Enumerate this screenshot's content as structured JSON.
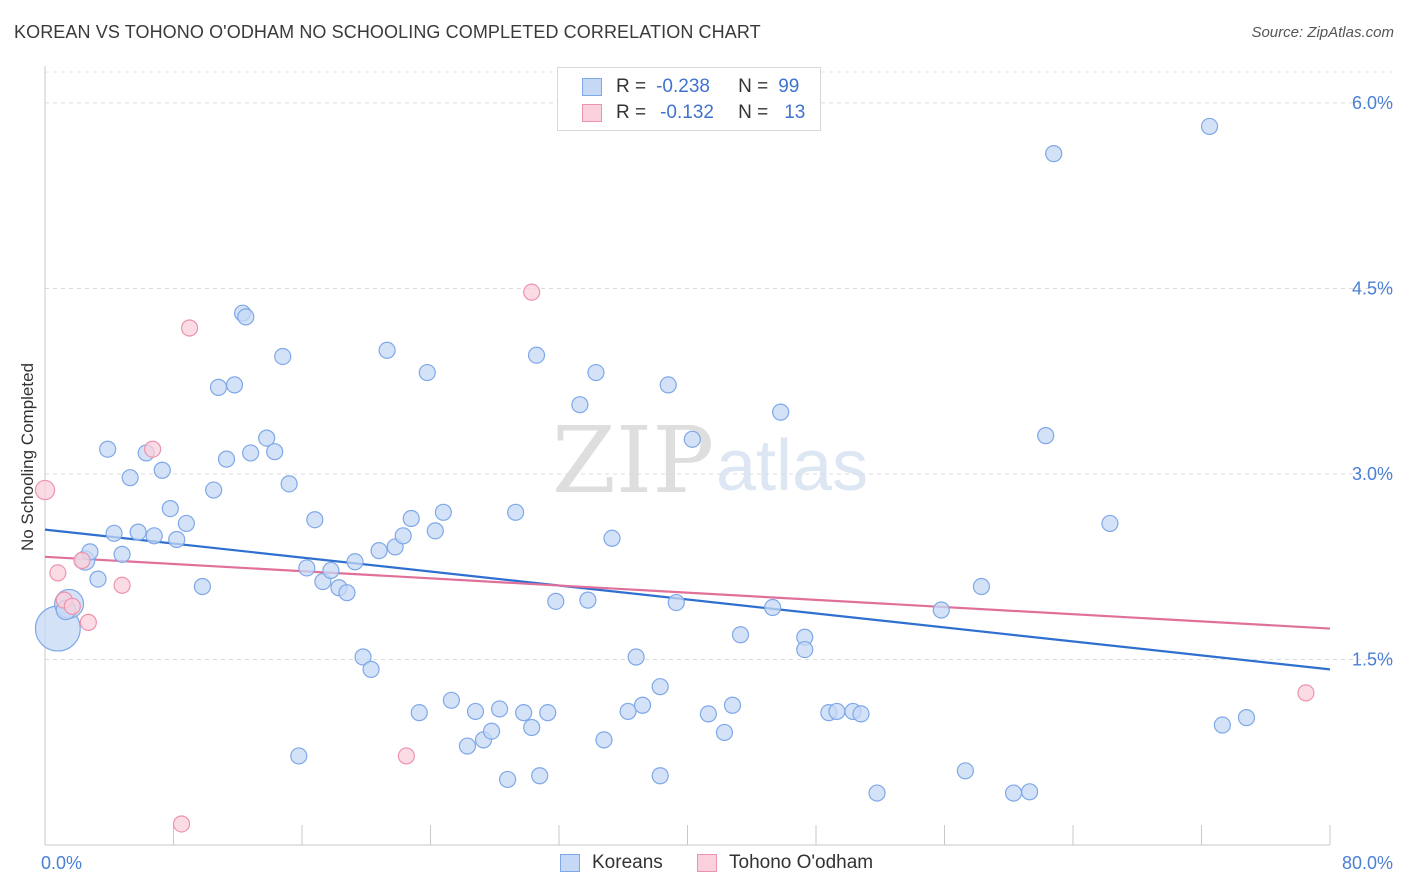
{
  "header": {
    "title": "KOREAN VS TOHONO O'ODHAM NO SCHOOLING COMPLETED CORRELATION CHART",
    "source": "Source: ZipAtlas.com"
  },
  "watermark": {
    "zip": "ZIP",
    "atlas": "atlas"
  },
  "legend": {
    "rows": [
      {
        "r_label": "R =",
        "r_value": "-0.238",
        "n_label": "N =",
        "n_value": "99",
        "color": "#7fa8e8",
        "fill": "#c5d8f6"
      },
      {
        "r_label": "R =",
        "r_value": "-0.132",
        "n_label": "N =",
        "n_value": "13",
        "color": "#ee93ad",
        "fill": "#f9d0dc"
      }
    ]
  },
  "bottom_legend": {
    "items": [
      "Koreans",
      "Tohono O'odham"
    ]
  },
  "chart_data": {
    "type": "scatter",
    "title": "KOREAN VS TOHONO O'ODHAM NO SCHOOLING COMPLETED CORRELATION CHART",
    "xlabel": "",
    "ylabel": "No Schooling Completed",
    "xlim": [
      0,
      80
    ],
    "ylim": [
      0,
      6.25
    ],
    "x_tick_labels": [
      "0.0%",
      "80.0%"
    ],
    "y_ticks": [
      1.5,
      3.0,
      4.5,
      6.0
    ],
    "y_tick_labels": [
      "1.5%",
      "3.0%",
      "4.5%",
      "6.0%"
    ],
    "grid": true,
    "series": [
      {
        "name": "Koreans",
        "color": "#7fa8e8",
        "fill": "#c5d8f6",
        "trend": {
          "x": [
            0,
            80
          ],
          "y": [
            2.55,
            1.42
          ]
        },
        "points": [
          [
            0.8,
            1.75,
            28
          ],
          [
            1.5,
            1.95,
            18
          ],
          [
            1.3,
            1.9,
            12
          ],
          [
            2.5,
            2.3,
            12
          ],
          [
            2.8,
            2.37,
            10
          ],
          [
            3.3,
            2.15,
            10
          ],
          [
            3.9,
            3.2,
            10
          ],
          [
            4.3,
            2.52,
            10
          ],
          [
            4.8,
            2.35,
            10
          ],
          [
            5.3,
            2.97,
            10
          ],
          [
            5.8,
            2.53,
            10
          ],
          [
            6.3,
            3.17,
            10
          ],
          [
            6.8,
            2.5,
            10
          ],
          [
            7.3,
            3.03,
            10
          ],
          [
            7.8,
            2.72,
            10
          ],
          [
            8.2,
            2.47,
            10
          ],
          [
            8.8,
            2.6,
            10
          ],
          [
            9.8,
            2.09,
            10
          ],
          [
            10.8,
            3.7,
            10
          ],
          [
            10.5,
            2.87,
            10
          ],
          [
            11.3,
            3.12,
            10
          ],
          [
            11.8,
            3.72,
            10
          ],
          [
            12.3,
            4.3,
            10
          ],
          [
            12.5,
            4.27,
            10
          ],
          [
            12.8,
            3.17,
            10
          ],
          [
            13.8,
            3.29,
            10
          ],
          [
            14.3,
            3.18,
            10
          ],
          [
            15.2,
            2.92,
            10
          ],
          [
            14.8,
            3.95,
            10
          ],
          [
            15.8,
            0.72,
            10
          ],
          [
            16.8,
            2.63,
            10
          ],
          [
            16.3,
            2.24,
            10
          ],
          [
            17.3,
            2.13,
            10
          ],
          [
            17.8,
            2.22,
            10
          ],
          [
            18.3,
            2.08,
            10
          ],
          [
            18.8,
            2.04,
            10
          ],
          [
            19.3,
            2.29,
            10
          ],
          [
            19.8,
            1.52,
            10
          ],
          [
            20.3,
            1.42,
            10
          ],
          [
            20.8,
            2.38,
            10
          ],
          [
            21.3,
            4.0,
            10
          ],
          [
            21.8,
            2.41,
            10
          ],
          [
            22.3,
            2.5,
            10
          ],
          [
            22.8,
            2.64,
            10
          ],
          [
            23.3,
            1.07,
            10
          ],
          [
            23.8,
            3.82,
            10
          ],
          [
            24.3,
            2.54,
            10
          ],
          [
            24.8,
            2.69,
            10
          ],
          [
            25.3,
            1.17,
            10
          ],
          [
            26.3,
            0.8,
            10
          ],
          [
            26.8,
            1.08,
            10
          ],
          [
            27.3,
            0.85,
            10
          ],
          [
            27.8,
            0.92,
            10
          ],
          [
            28.3,
            1.1,
            10
          ],
          [
            28.8,
            0.53,
            10
          ],
          [
            29.3,
            2.69,
            10
          ],
          [
            29.8,
            1.07,
            10
          ],
          [
            30.3,
            0.95,
            10
          ],
          [
            30.8,
            0.56,
            10
          ],
          [
            30.6,
            3.96,
            10
          ],
          [
            31.3,
            1.07,
            10
          ],
          [
            31.8,
            1.97,
            10
          ],
          [
            33.3,
            3.56,
            10
          ],
          [
            33.8,
            1.98,
            10
          ],
          [
            34.3,
            3.82,
            10
          ],
          [
            34.8,
            0.85,
            10
          ],
          [
            35.3,
            2.48,
            10
          ],
          [
            36.3,
            1.08,
            10
          ],
          [
            37.2,
            1.13,
            10
          ],
          [
            38.3,
            1.28,
            10
          ],
          [
            36.8,
            1.52,
            10
          ],
          [
            38.8,
            3.72,
            10
          ],
          [
            38.3,
            0.56,
            10
          ],
          [
            39.3,
            1.96,
            10
          ],
          [
            40.3,
            3.28,
            10
          ],
          [
            41.3,
            1.06,
            10
          ],
          [
            42.3,
            0.91,
            10
          ],
          [
            42.8,
            1.13,
            10
          ],
          [
            43.3,
            1.7,
            10
          ],
          [
            45.3,
            1.92,
            10
          ],
          [
            45.8,
            3.5,
            10
          ],
          [
            47.3,
            1.68,
            10
          ],
          [
            47.3,
            1.58,
            10
          ],
          [
            48.8,
            1.07,
            10
          ],
          [
            49.3,
            1.08,
            10
          ],
          [
            50.3,
            1.08,
            10
          ],
          [
            50.8,
            1.06,
            10
          ],
          [
            51.8,
            0.42,
            10
          ],
          [
            55.8,
            1.9,
            10
          ],
          [
            57.3,
            0.6,
            10
          ],
          [
            58.3,
            2.09,
            10
          ],
          [
            60.3,
            0.42,
            10
          ],
          [
            61.3,
            0.43,
            10
          ],
          [
            62.3,
            3.31,
            10
          ],
          [
            62.8,
            5.59,
            10
          ],
          [
            66.3,
            2.6,
            10
          ],
          [
            72.5,
            5.81,
            10
          ],
          [
            73.3,
            0.97,
            10
          ],
          [
            74.8,
            1.03,
            10
          ]
        ]
      },
      {
        "name": "Tohono O'odham",
        "color": "#ee93ad",
        "fill": "#f9d0dc",
        "trend": {
          "x": [
            0,
            80
          ],
          "y": [
            2.33,
            1.75
          ]
        },
        "points": [
          [
            0.0,
            2.87,
            12
          ],
          [
            0.8,
            2.2,
            10
          ],
          [
            1.2,
            1.98,
            10
          ],
          [
            1.7,
            1.93,
            10
          ],
          [
            2.3,
            2.3,
            10
          ],
          [
            2.7,
            1.8,
            10
          ],
          [
            4.8,
            2.1,
            10
          ],
          [
            6.7,
            3.2,
            10
          ],
          [
            8.5,
            0.17,
            10
          ],
          [
            9.0,
            4.18,
            10
          ],
          [
            22.5,
            0.72,
            10
          ],
          [
            30.3,
            4.47,
            10
          ],
          [
            78.5,
            1.23,
            10
          ]
        ]
      }
    ]
  }
}
